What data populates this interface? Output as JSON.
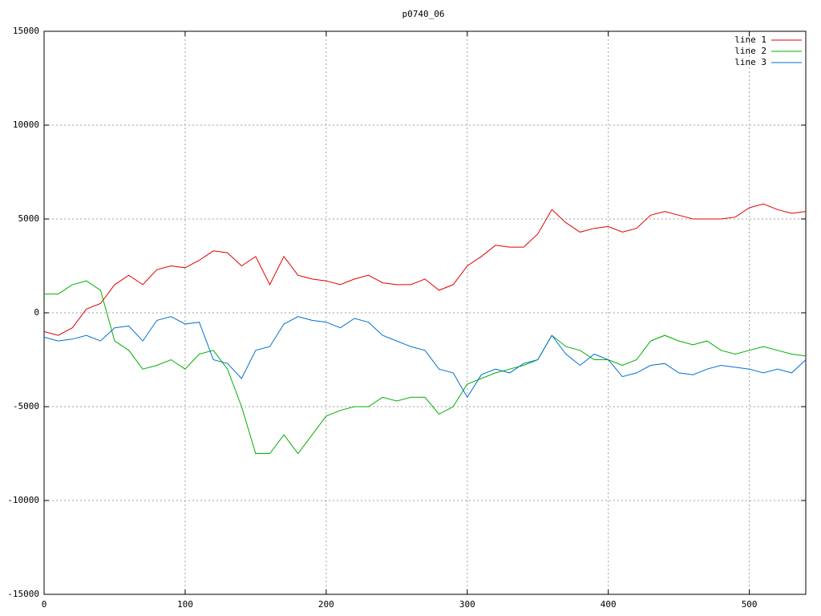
{
  "chart_data": {
    "type": "line",
    "title": "p0740_06",
    "x": [
      0,
      10,
      20,
      30,
      40,
      50,
      60,
      70,
      80,
      90,
      100,
      110,
      120,
      130,
      140,
      150,
      160,
      170,
      180,
      190,
      200,
      210,
      220,
      230,
      240,
      250,
      260,
      270,
      280,
      290,
      300,
      310,
      320,
      330,
      340,
      350,
      360,
      370,
      380,
      390,
      400,
      410,
      420,
      430,
      440,
      450,
      460,
      470,
      480,
      490,
      500,
      510,
      520,
      530,
      540
    ],
    "series": [
      {
        "name": "line 1",
        "color": "#e00000",
        "values": [
          -1000,
          -1200,
          -800,
          200,
          500,
          1500,
          2000,
          1500,
          2300,
          2500,
          2400,
          2800,
          3300,
          3200,
          2500,
          3000,
          1500,
          3000,
          2000,
          1800,
          1700,
          1500,
          1800,
          2000,
          1600,
          1500,
          1500,
          1800,
          1200,
          1500,
          2500,
          3000,
          3600,
          3500,
          3500,
          4200,
          5500,
          4800,
          4300,
          4500,
          4600,
          4300,
          4500,
          5200,
          5400,
          5200,
          5000,
          5000,
          5000,
          5100,
          5600,
          5800,
          5500,
          5300,
          5400
        ]
      },
      {
        "name": "line 2",
        "color": "#00b000",
        "values": [
          1000,
          1000,
          1500,
          1700,
          1200,
          -1500,
          -2000,
          -3000,
          -2800,
          -2500,
          -3000,
          -2200,
          -2000,
          -3000,
          -5000,
          -7500,
          -7500,
          -6500,
          -7500,
          -6500,
          -5500,
          -5200,
          -5000,
          -5000,
          -4500,
          -4700,
          -4500,
          -4500,
          -5400,
          -5000,
          -3800,
          -3500,
          -3200,
          -3000,
          -2800,
          -2500,
          -1200,
          -1800,
          -2000,
          -2500,
          -2500,
          -2800,
          -2500,
          -1500,
          -1200,
          -1500,
          -1700,
          -1500,
          -2000,
          -2200,
          -2000,
          -1800,
          -2000,
          -2200,
          -2300
        ]
      },
      {
        "name": "line 3",
        "color": "#0070d0",
        "values": [
          -1300,
          -1500,
          -1400,
          -1200,
          -1500,
          -800,
          -700,
          -1500,
          -400,
          -200,
          -600,
          -500,
          -2500,
          -2700,
          -3500,
          -2000,
          -1800,
          -600,
          -200,
          -400,
          -500,
          -800,
          -300,
          -500,
          -1200,
          -1500,
          -1800,
          -2000,
          -3000,
          -3200,
          -4500,
          -3300,
          -3000,
          -3200,
          -2700,
          -2500,
          -1200,
          -2200,
          -2800,
          -2200,
          -2500,
          -3400,
          -3200,
          -2800,
          -2700,
          -3200,
          -3300,
          -3000,
          -2800,
          -2900,
          -3000,
          -3200,
          -3000,
          -3200,
          -2500
        ]
      }
    ],
    "xlim": [
      0,
      540
    ],
    "ylim": [
      -15000,
      15000
    ],
    "xticks": [
      0,
      100,
      200,
      300,
      400,
      500
    ],
    "yticks": [
      -15000,
      -10000,
      -5000,
      0,
      5000,
      10000,
      15000
    ],
    "grid": true,
    "legend": "top-right"
  }
}
